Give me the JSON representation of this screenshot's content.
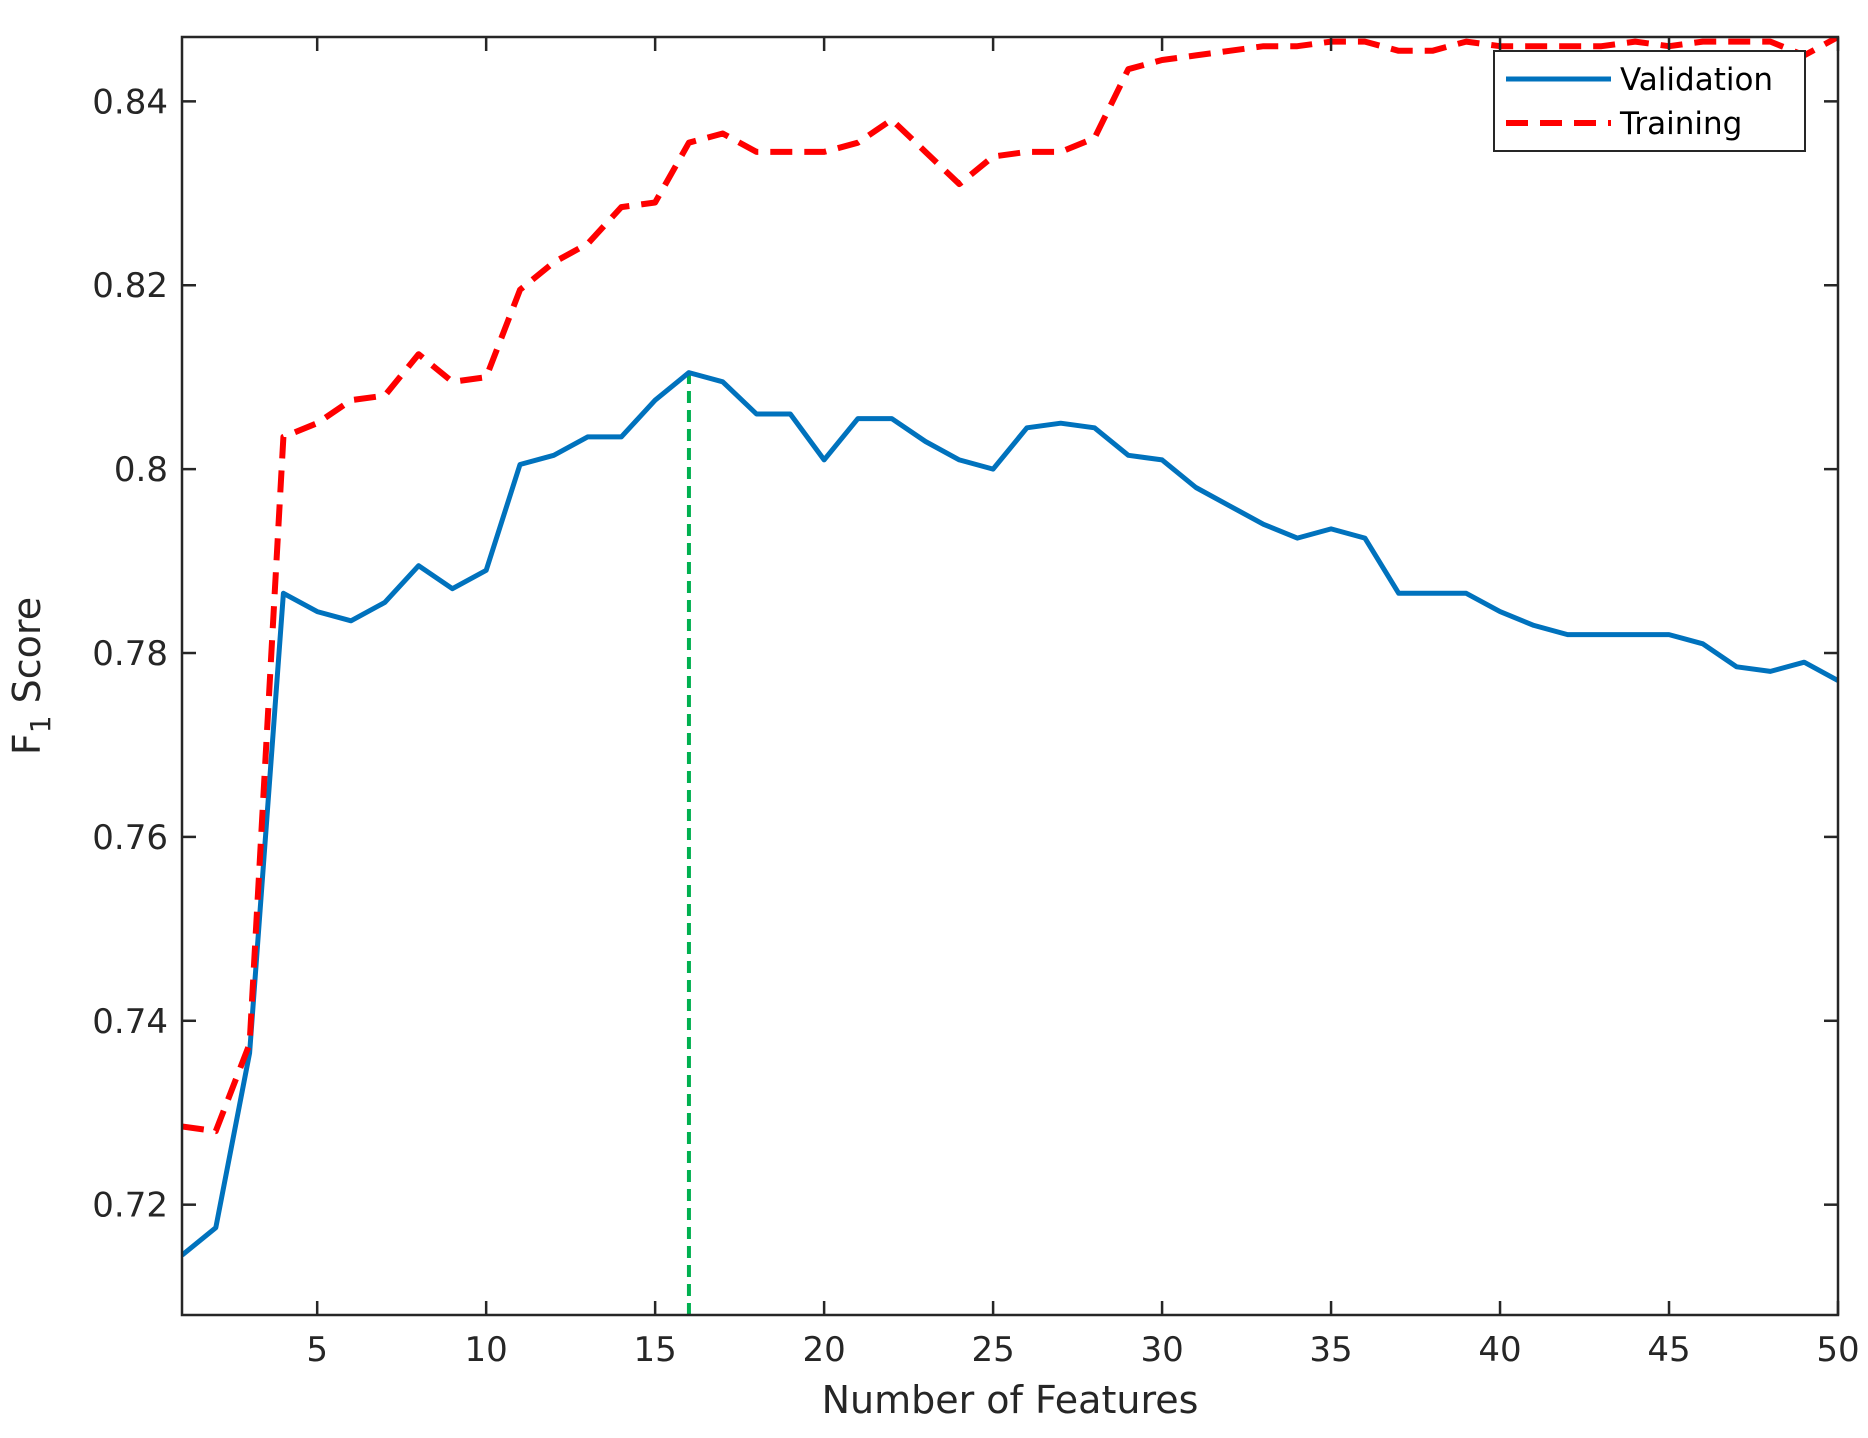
{
  "chart_data": {
    "type": "line",
    "xlabel": "Number of Features",
    "ylabel_main": "F",
    "ylabel_sub": "1",
    "ylabel_rest": " Score",
    "xlim": [
      1,
      50
    ],
    "ylim": [
      0.708,
      0.847
    ],
    "xticks": [
      5,
      10,
      15,
      20,
      25,
      30,
      35,
      40,
      45,
      50
    ],
    "xtick_labels": [
      "5",
      "10",
      "15",
      "20",
      "25",
      "30",
      "35",
      "40",
      "45",
      "50"
    ],
    "yticks": [
      0.72,
      0.74,
      0.76,
      0.78,
      0.8,
      0.82,
      0.84
    ],
    "ytick_labels": [
      "0.72",
      "0.74",
      "0.76",
      "0.78",
      "0.8",
      "0.82",
      "0.84"
    ],
    "grid": false,
    "legend_position": "top-right",
    "x": [
      1,
      2,
      3,
      4,
      5,
      6,
      7,
      8,
      9,
      10,
      11,
      12,
      13,
      14,
      15,
      16,
      17,
      18,
      19,
      20,
      21,
      22,
      23,
      24,
      25,
      26,
      27,
      28,
      29,
      30,
      31,
      32,
      33,
      34,
      35,
      36,
      37,
      38,
      39,
      40,
      41,
      42,
      43,
      44,
      45,
      46,
      47,
      48,
      49,
      50
    ],
    "series": [
      {
        "name": "Validation",
        "color": "#0072BD",
        "style": "solid",
        "values": [
          0.7145,
          0.7175,
          0.7365,
          0.7865,
          0.7845,
          0.7835,
          0.7855,
          0.7895,
          0.787,
          0.789,
          0.8005,
          0.8015,
          0.8035,
          0.8035,
          0.8075,
          0.8105,
          0.8095,
          0.806,
          0.806,
          0.801,
          0.8055,
          0.8055,
          0.803,
          0.801,
          0.8,
          0.8045,
          0.805,
          0.8045,
          0.8015,
          0.801,
          0.798,
          0.796,
          0.794,
          0.7925,
          0.7935,
          0.7925,
          0.7865,
          0.7865,
          0.7865,
          0.7845,
          0.783,
          0.782,
          0.782,
          0.782,
          0.782,
          0.781,
          0.7785,
          0.778,
          0.779,
          0.777
        ]
      },
      {
        "name": "Training",
        "color": "#FF0000",
        "style": "dashed",
        "values": [
          0.7285,
          0.728,
          0.7375,
          0.8035,
          0.805,
          0.8075,
          0.808,
          0.8125,
          0.8095,
          0.81,
          0.8195,
          0.8225,
          0.8245,
          0.8285,
          0.829,
          0.8355,
          0.8365,
          0.8345,
          0.8345,
          0.8345,
          0.8355,
          0.838,
          0.8345,
          0.831,
          0.834,
          0.8345,
          0.8345,
          0.836,
          0.8435,
          0.8445,
          0.845,
          0.8455,
          0.846,
          0.846,
          0.8465,
          0.8465,
          0.8455,
          0.8455,
          0.8465,
          0.846,
          0.846,
          0.846,
          0.846,
          0.8465,
          0.846,
          0.8465,
          0.8465,
          0.8465,
          0.845,
          0.847
        ]
      }
    ],
    "annotation": {
      "type": "vertical-line",
      "x": 16,
      "y_top": 0.8105,
      "color": "#00B050",
      "style": "dashed"
    }
  }
}
